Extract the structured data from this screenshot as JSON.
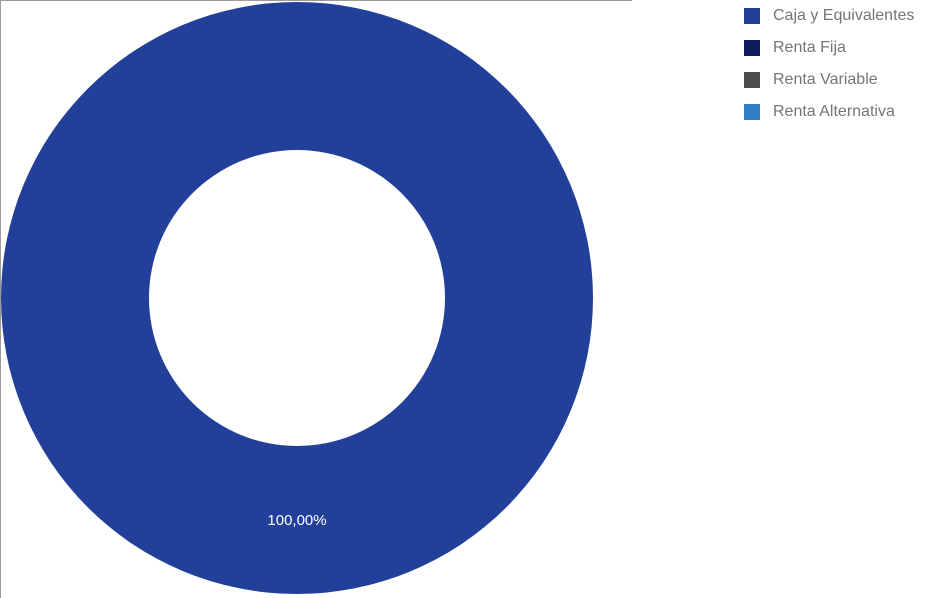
{
  "chart_data": {
    "type": "pie",
    "variant": "donut",
    "categories": [
      "Caja y Equivalentes",
      "Renta Fija",
      "Renta Variable",
      "Renta Alternativa"
    ],
    "values": [
      100,
      0,
      0,
      0
    ],
    "colors": [
      "#22409a",
      "#0d1a5e",
      "#4d4d4d",
      "#2e7fc4"
    ],
    "data_labels": [
      "100,00%",
      "",
      "",
      ""
    ],
    "legend_position": "right",
    "title": ""
  }
}
